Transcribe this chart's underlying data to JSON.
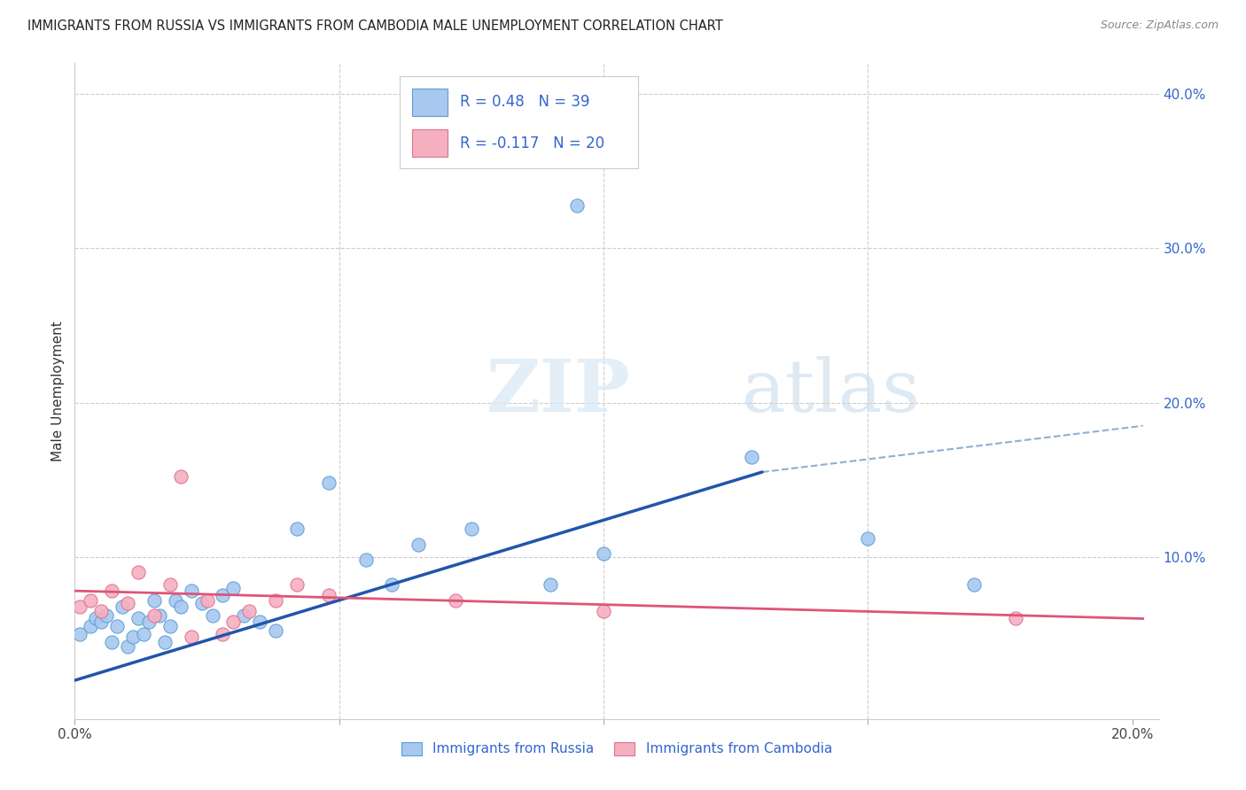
{
  "title": "IMMIGRANTS FROM RUSSIA VS IMMIGRANTS FROM CAMBODIA MALE UNEMPLOYMENT CORRELATION CHART",
  "source": "Source: ZipAtlas.com",
  "ylabel": "Male Unemployment",
  "xlim": [
    0.0,
    0.205
  ],
  "ylim": [
    -0.005,
    0.42
  ],
  "yticks_right": [
    0.1,
    0.2,
    0.3,
    0.4
  ],
  "ytick_labels_right": [
    "10.0%",
    "20.0%",
    "30.0%",
    "40.0%"
  ],
  "russia_color": "#a8c8f0",
  "russia_edge_color": "#5a9fd4",
  "cambodia_color": "#f5b0c0",
  "cambodia_edge_color": "#e07090",
  "russia_R": 0.48,
  "russia_N": 39,
  "cambodia_R": -0.117,
  "cambodia_N": 20,
  "russia_line_color": "#2255aa",
  "cambodia_line_color": "#dd5577",
  "dashed_line_color": "#7799cc",
  "legend_color": "#3366cc",
  "watermark_zip": "ZIP",
  "watermark_atlas": "atlas",
  "russia_scatter_x": [
    0.001,
    0.003,
    0.004,
    0.005,
    0.006,
    0.007,
    0.008,
    0.009,
    0.01,
    0.011,
    0.012,
    0.013,
    0.014,
    0.015,
    0.016,
    0.017,
    0.018,
    0.019,
    0.02,
    0.022,
    0.024,
    0.026,
    0.028,
    0.03,
    0.032,
    0.035,
    0.038,
    0.042,
    0.048,
    0.055,
    0.06,
    0.065,
    0.075,
    0.09,
    0.095,
    0.1,
    0.128,
    0.15,
    0.17
  ],
  "russia_scatter_y": [
    0.05,
    0.055,
    0.06,
    0.058,
    0.062,
    0.045,
    0.055,
    0.068,
    0.042,
    0.048,
    0.06,
    0.05,
    0.058,
    0.072,
    0.062,
    0.045,
    0.055,
    0.072,
    0.068,
    0.078,
    0.07,
    0.062,
    0.075,
    0.08,
    0.062,
    0.058,
    0.052,
    0.118,
    0.148,
    0.098,
    0.082,
    0.108,
    0.118,
    0.082,
    0.328,
    0.102,
    0.165,
    0.112,
    0.082
  ],
  "cambodia_scatter_x": [
    0.001,
    0.003,
    0.005,
    0.007,
    0.01,
    0.012,
    0.015,
    0.018,
    0.02,
    0.022,
    0.025,
    0.028,
    0.03,
    0.033,
    0.038,
    0.042,
    0.048,
    0.072,
    0.1,
    0.178
  ],
  "cambodia_scatter_y": [
    0.068,
    0.072,
    0.065,
    0.078,
    0.07,
    0.09,
    0.062,
    0.082,
    0.152,
    0.048,
    0.072,
    0.05,
    0.058,
    0.065,
    0.072,
    0.082,
    0.075,
    0.072,
    0.065,
    0.06
  ],
  "russia_line_x0": 0.0,
  "russia_line_x1": 0.13,
  "russia_line_y0": 0.02,
  "russia_line_y1": 0.155,
  "dashed_line_x0": 0.13,
  "dashed_line_x1": 0.202,
  "dashed_line_y0": 0.155,
  "dashed_line_y1": 0.185,
  "cambodia_line_x0": 0.0,
  "cambodia_line_x1": 0.202,
  "cambodia_line_y0": 0.078,
  "cambodia_line_y1": 0.06
}
